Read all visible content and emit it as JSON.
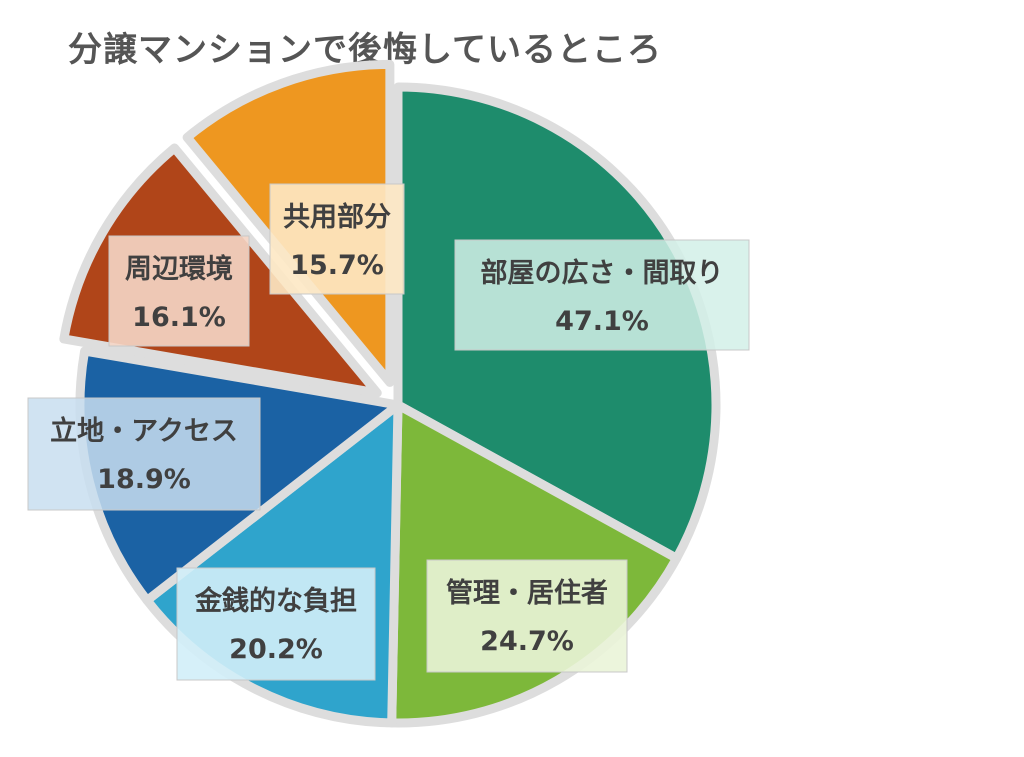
{
  "chart_data": {
    "type": "pie",
    "title": "分譲マンションで後悔しているところ",
    "slices": [
      {
        "label": "部屋の広さ・間取り",
        "value_label": "47.1%",
        "value": 47.1,
        "color": "#1E8C6C",
        "exploded": false
      },
      {
        "label": "管理・居住者",
        "value_label": "24.7%",
        "value": 24.7,
        "color": "#7DB83A",
        "exploded": false
      },
      {
        "label": "金銭的な負担",
        "value_label": "20.2%",
        "value": 20.2,
        "color": "#2FA4CC",
        "exploded": false
      },
      {
        "label": "立地・アクセス",
        "value_label": "18.9%",
        "value": 18.9,
        "color": "#1B62A4",
        "exploded": false
      },
      {
        "label": "周辺環境",
        "value_label": "16.1%",
        "value": 16.1,
        "color": "#B04519",
        "exploded": true
      },
      {
        "label": "共用部分",
        "value_label": "15.7%",
        "value": 15.7,
        "color": "#EE9720",
        "exploded": true
      }
    ]
  }
}
